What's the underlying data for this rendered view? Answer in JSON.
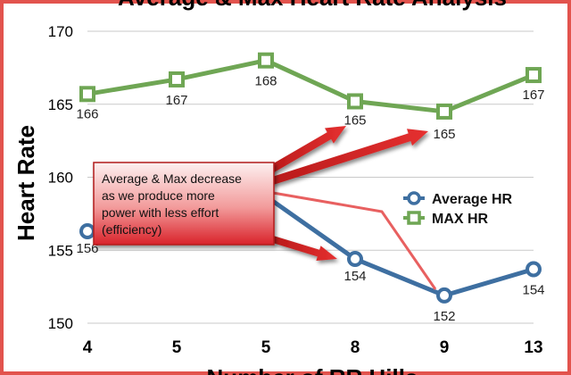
{
  "chart_data": {
    "type": "line",
    "title": "Average & Max Heart Rate Analysis",
    "ylabel": "Heart Rate",
    "xlabel": "Number of RR Hills",
    "categories": [
      "4",
      "5",
      "5",
      "8",
      "9",
      "13"
    ],
    "ylim": [
      150,
      170
    ],
    "yticks": [
      150,
      155,
      160,
      165,
      170
    ],
    "grid": true,
    "legend_position": "right",
    "series": [
      {
        "name": "Average HR",
        "values": [
          156.3,
          null,
          158.7,
          154.4,
          151.9,
          153.7
        ],
        "labels": [
          "156",
          "",
          "",
          "154",
          "152",
          "154"
        ],
        "color": "#3e6fa1",
        "marker": "circle"
      },
      {
        "name": "MAX HR",
        "values": [
          165.7,
          166.7,
          168.0,
          165.2,
          164.5,
          167.0
        ],
        "labels": [
          "166",
          "167",
          "168",
          "165",
          "165",
          "167"
        ],
        "color": "#6fa654",
        "marker": "square"
      }
    ],
    "annotation": {
      "text_lines": [
        "Average & Max decrease",
        "as we produce more",
        "power with less effort",
        "(efficiency)"
      ],
      "box_color": "#e23e3e"
    }
  }
}
